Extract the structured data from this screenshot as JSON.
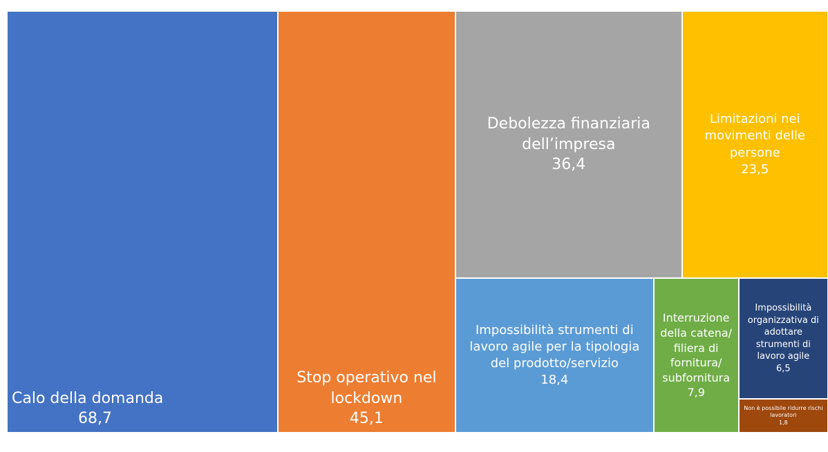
{
  "chart_data": {
    "type": "treemap",
    "categories": [
      "Calo della domanda",
      "Stop operativo nel lockdown",
      "Debolezza finanziaria dell’impresa",
      "Limitazioni nei movimenti delle persone",
      "Impossibilità  strumenti di lavoro agile per la tipologia del prodotto/servizio",
      "Interruzione della catena/ filiera di fornitura/ subfornitura",
      "Impossibilità organizzativa di adottare strumenti di lavoro agile",
      "Non è possibile ridurre rischi lavoratori"
    ],
    "values": [
      68.7,
      45.1,
      36.4,
      23.5,
      18.4,
      7.9,
      6.5,
      1.8
    ],
    "value_labels": [
      "68,7",
      "45,1",
      "36,4",
      "23,5",
      "18,4",
      "7,9",
      "6,5",
      "1,8"
    ],
    "colors": [
      "#4472c4",
      "#ed7d31",
      "#a5a5a5",
      "#ffc000",
      "#5b9bd5",
      "#70ad47",
      "#264478",
      "#9e480e"
    ]
  }
}
